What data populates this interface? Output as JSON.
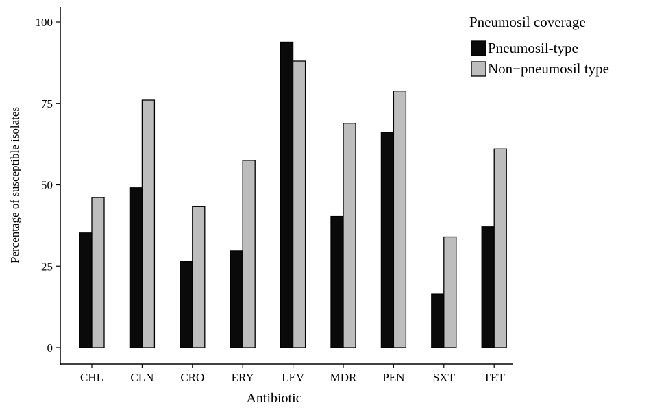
{
  "chart_data": {
    "type": "bar",
    "categories": [
      "CHL",
      "CLN",
      "CRO",
      "ERY",
      "LEV",
      "MDR",
      "PEN",
      "SXT",
      "TET"
    ],
    "series": [
      {
        "name": "Pneumosil-type",
        "color": "#0a0a0a",
        "values": [
          35.2,
          49.1,
          26.4,
          29.7,
          93.8,
          40.3,
          66.1,
          16.4,
          37.1
        ]
      },
      {
        "name": "Non−pneumosil type",
        "color": "#bdbdbd",
        "values": [
          46.1,
          76.0,
          43.3,
          57.5,
          88.0,
          68.9,
          78.8,
          34.0,
          61.0
        ]
      }
    ],
    "xlabel": "Antibiotic",
    "ylabel": "Percentage of susceptible isolates",
    "ylim": [
      0,
      104
    ],
    "yticks": [
      0,
      25,
      50,
      75,
      100
    ],
    "grid": false,
    "legend": {
      "title": "Pneumosil coverage",
      "placement": "top-right"
    }
  }
}
